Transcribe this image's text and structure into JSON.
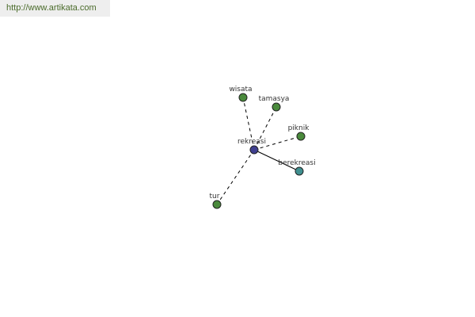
{
  "watermark": "http://www.artikata.com",
  "center": {
    "id": "rekreasi",
    "label": "rekreasi",
    "color": "#3f3f8f"
  },
  "nodes": [
    {
      "id": "wisata",
      "label": "wisata",
      "color": "#4a8a3c",
      "edge": "dashed"
    },
    {
      "id": "tamasya",
      "label": "tamasya",
      "color": "#4a8a3c",
      "edge": "dashed"
    },
    {
      "id": "piknik",
      "label": "piknik",
      "color": "#4a8a3c",
      "edge": "dashed"
    },
    {
      "id": "berekreasi",
      "label": "berekreasi",
      "color": "#3f8f8f",
      "edge": "solid"
    },
    {
      "id": "tur",
      "label": "tur",
      "color": "#4a8a3c",
      "edge": "dashed"
    }
  ]
}
